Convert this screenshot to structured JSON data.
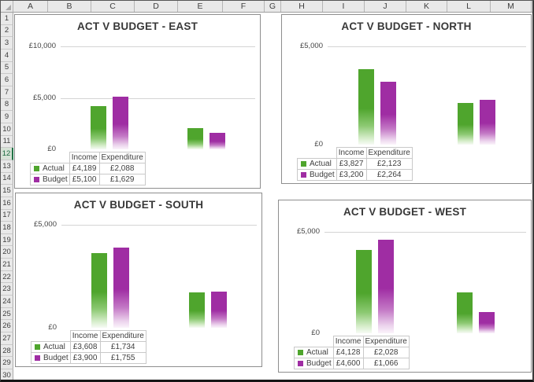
{
  "window": {
    "kind": "excel-worksheet"
  },
  "grid": {
    "columns": [
      "A",
      "B",
      "C",
      "D",
      "E",
      "F",
      "G",
      "H",
      "I",
      "J",
      "K",
      "L",
      "M"
    ],
    "rows": [
      "1",
      "2",
      "3",
      "4",
      "5",
      "6",
      "7",
      "8",
      "9",
      "10",
      "11",
      "12",
      "13",
      "14",
      "15",
      "16",
      "17",
      "18",
      "19",
      "20",
      "21",
      "22",
      "23",
      "24",
      "25",
      "26",
      "27",
      "28",
      "29",
      "30"
    ],
    "selected_row": "12"
  },
  "colors": {
    "actual_green": "#4fa52d",
    "budget_purple": "#9f2da3",
    "header_bg": "#e9e9e9",
    "selection_green": "#217346",
    "chart_gridline": "#d4d4d4",
    "chart_border": "#8e8e8e",
    "table_border": "#c9c9c9",
    "text": "#3f3f3f"
  },
  "chart_data": [
    {
      "type": "bar",
      "title": "ACT V BUDGET - EAST",
      "categories": [
        "Income",
        "Expenditure"
      ],
      "series": [
        {
          "name": "Actual",
          "color": "#4fa52d",
          "values": [
            4189,
            2088
          ],
          "labels": [
            "£4,189",
            "£2,088"
          ]
        },
        {
          "name": "Budget",
          "color": "#9f2da3",
          "values": [
            5100,
            1629
          ],
          "labels": [
            "£5,100",
            "£1,629"
          ]
        }
      ],
      "y_ticks": [
        {
          "label": "£10,000",
          "value": 10000
        },
        {
          "label": "£5,000",
          "value": 5000
        },
        {
          "label": "£0",
          "value": 0
        }
      ],
      "ylim": [
        0,
        10000
      ],
      "grid": true,
      "legend_position": "data-table-left"
    },
    {
      "type": "bar",
      "title": "ACT V BUDGET - NORTH",
      "categories": [
        "Income",
        "Expenditure"
      ],
      "series": [
        {
          "name": "Actual",
          "color": "#4fa52d",
          "values": [
            3827,
            2123
          ],
          "labels": [
            "£3,827",
            "£2,123"
          ]
        },
        {
          "name": "Budget",
          "color": "#9f2da3",
          "values": [
            3200,
            2264
          ],
          "labels": [
            "£3,200",
            "£2,264"
          ]
        }
      ],
      "y_ticks": [
        {
          "label": "£5,000",
          "value": 5000
        },
        {
          "label": "£0",
          "value": 0
        }
      ],
      "ylim": [
        0,
        5000
      ],
      "grid": true,
      "legend_position": "data-table-left"
    },
    {
      "type": "bar",
      "title": "ACT V BUDGET - SOUTH",
      "categories": [
        "Income",
        "Expenditure"
      ],
      "series": [
        {
          "name": "Actual",
          "color": "#4fa52d",
          "values": [
            3608,
            1734
          ],
          "labels": [
            "£3,608",
            "£1,734"
          ]
        },
        {
          "name": "Budget",
          "color": "#9f2da3",
          "values": [
            3900,
            1755
          ],
          "labels": [
            "£3,900",
            "£1,755"
          ]
        }
      ],
      "y_ticks": [
        {
          "label": "£5,000",
          "value": 5000
        },
        {
          "label": "£0",
          "value": 0
        }
      ],
      "ylim": [
        0,
        5000
      ],
      "grid": true,
      "legend_position": "data-table-left"
    },
    {
      "type": "bar",
      "title": "ACT V BUDGET - WEST",
      "categories": [
        "Income",
        "Expenditure"
      ],
      "series": [
        {
          "name": "Actual",
          "color": "#4fa52d",
          "values": [
            4128,
            2028
          ],
          "labels": [
            "£4,128",
            "£2,028"
          ]
        },
        {
          "name": "Budget",
          "color": "#9f2da3",
          "values": [
            4600,
            1066
          ],
          "labels": [
            "£4,600",
            "£1,066"
          ]
        }
      ],
      "y_ticks": [
        {
          "label": "£5,000",
          "value": 5000
        },
        {
          "label": "£0",
          "value": 0
        }
      ],
      "ylim": [
        0,
        5000
      ],
      "grid": true,
      "legend_position": "data-table-left"
    }
  ]
}
